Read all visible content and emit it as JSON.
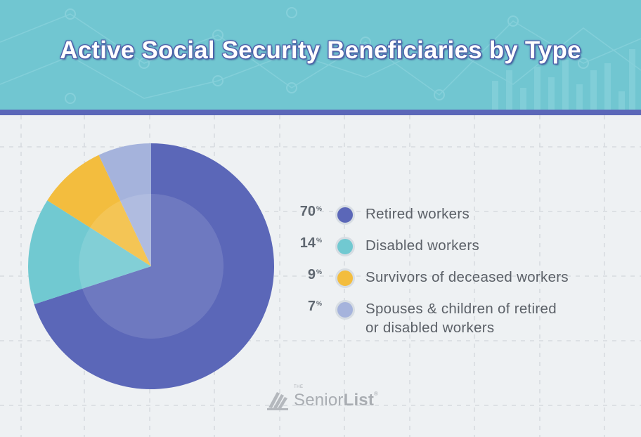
{
  "title": "Active Social Security Beneficiaries by Type",
  "colors": {
    "header_bg": "#71c6d1",
    "header_band": "#5b67b8",
    "background": "#eef1f3"
  },
  "chart_data": {
    "type": "pie",
    "title": "Active Social Security Beneficiaries by Type",
    "slices": [
      {
        "label": "Retired workers",
        "value": 70,
        "pct_label": "70",
        "color": "#5b67b8"
      },
      {
        "label": "Disabled workers",
        "value": 14,
        "pct_label": "14",
        "color": "#71c9d1"
      },
      {
        "label": "Survivors of deceased workers",
        "value": 9,
        "pct_label": "9",
        "color": "#f3bd3e"
      },
      {
        "label": "Spouses & children of retired or disabled workers",
        "value": 7,
        "pct_label": "7",
        "color": "#a5b3dc"
      }
    ],
    "legend": "right"
  },
  "legend_rows": [
    {
      "pct": "70",
      "unit": "%",
      "lines": [
        "Retired workers"
      ]
    },
    {
      "pct": "14",
      "unit": "%",
      "lines": [
        "Disabled workers"
      ]
    },
    {
      "pct": "9",
      "unit": "%",
      "lines": [
        "Survivors of deceased workers"
      ]
    },
    {
      "pct": "7",
      "unit": "%",
      "lines": [
        "Spouses & children of retired",
        "or disabled workers"
      ]
    }
  ],
  "logo": {
    "the": "THE",
    "name_a": "Senior",
    "name_b": "List",
    "reg": "®"
  }
}
